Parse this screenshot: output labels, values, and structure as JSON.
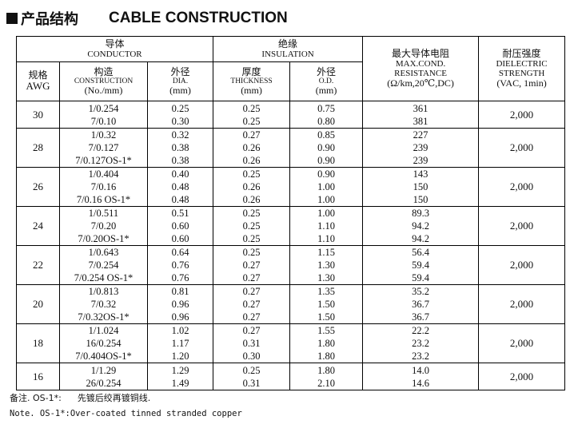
{
  "heading": {
    "cn": "产品结构",
    "en": "CABLE CONSTRUCTION"
  },
  "headers": {
    "conductor_cn": "导体",
    "conductor_en": "CONDUCTOR",
    "insulation_cn": "绝缘",
    "insulation_en": "INSULATION",
    "max_res_cn": "最大导体电阻",
    "max_res_en1": "MAX.COND.",
    "max_res_en2": "RESISTANCE",
    "max_res_unit": "(Ω/km,20℃,DC)",
    "dielectric_cn": "耐压强度",
    "dielectric_en1": "DIELECTRIC",
    "dielectric_en2": "STRENGTH",
    "dielectric_unit": "(VAC, 1min)",
    "awg_cn": "规格",
    "awg_en": "AWG",
    "construction_cn": "构造",
    "construction_en": "CONSTRUCTION",
    "construction_unit": "(No./mm)",
    "dia_cn": "外径",
    "dia_en": "DIA.",
    "dia_unit": "(mm)",
    "thickness_cn": "厚度",
    "thickness_en": "THICKNESS",
    "thickness_unit": "(mm)",
    "od_cn": "外径",
    "od_en": "O.D.",
    "od_unit": "(mm)"
  },
  "rows": [
    {
      "awg": "30",
      "construction": [
        "1/0.254",
        "7/0.10"
      ],
      "dia": [
        "0.25",
        "0.30"
      ],
      "thickness": [
        "0.25",
        "0.25"
      ],
      "od": [
        "0.75",
        "0.80"
      ],
      "resistance": [
        "361",
        "381"
      ],
      "voltage": "2,000"
    },
    {
      "awg": "28",
      "construction": [
        "1/0.32",
        "7/0.127",
        "7/0.127OS-1*"
      ],
      "dia": [
        "0.32",
        "0.38",
        "0.38"
      ],
      "thickness": [
        "0.27",
        "0.26",
        "0.26"
      ],
      "od": [
        "0.85",
        "0.90",
        "0.90"
      ],
      "resistance": [
        "227",
        "239",
        "239"
      ],
      "voltage": "2,000"
    },
    {
      "awg": "26",
      "construction": [
        "1/0.404",
        "7/0.16",
        "7/0.16 OS-1*"
      ],
      "dia": [
        "0.40",
        "0.48",
        "0.48"
      ],
      "thickness": [
        "0.25",
        "0.26",
        "0.26"
      ],
      "od": [
        "0.90",
        "1.00",
        "1.00"
      ],
      "resistance": [
        "143",
        "150",
        "150"
      ],
      "voltage": "2,000"
    },
    {
      "awg": "24",
      "construction": [
        "1/0.511",
        "7/0.20",
        "7/0.20OS-1*"
      ],
      "dia": [
        "0.51",
        "0.60",
        "0.60"
      ],
      "thickness": [
        "0.25",
        "0.25",
        "0.25"
      ],
      "od": [
        "1.00",
        "1.10",
        "1.10"
      ],
      "resistance": [
        "89.3",
        "94.2",
        "94.2"
      ],
      "voltage": "2,000"
    },
    {
      "awg": "22",
      "construction": [
        "1/0.643",
        "7/0.254",
        "7/0.254 OS-1*"
      ],
      "dia": [
        "0.64",
        "0.76",
        "0.76"
      ],
      "thickness": [
        "0.25",
        "0.27",
        "0.27"
      ],
      "od": [
        "1.15",
        "1.30",
        "1.30"
      ],
      "resistance": [
        "56.4",
        "59.4",
        "59.4"
      ],
      "voltage": "2,000"
    },
    {
      "awg": "20",
      "construction": [
        "1/0.813",
        "7/0.32",
        "7/0.32OS-1*"
      ],
      "dia": [
        "0.81",
        "0.96",
        "0.96"
      ],
      "thickness": [
        "0.27",
        "0.27",
        "0.27"
      ],
      "od": [
        "1.35",
        "1.50",
        "1.50"
      ],
      "resistance": [
        "35.2",
        "36.7",
        "36.7"
      ],
      "voltage": "2,000"
    },
    {
      "awg": "18",
      "construction": [
        "1/1.024",
        "16/0.254",
        "7/0.404OS-1*"
      ],
      "dia": [
        "1.02",
        "1.17",
        "1.20"
      ],
      "thickness": [
        "0.27",
        "0.31",
        "0.30"
      ],
      "od": [
        "1.55",
        "1.80",
        "1.80"
      ],
      "resistance": [
        "22.2",
        "23.2",
        "23.2"
      ],
      "voltage": "2,000"
    },
    {
      "awg": "16",
      "construction": [
        "1/1.29",
        "26/0.254"
      ],
      "dia": [
        "1.29",
        "1.49"
      ],
      "thickness": [
        "0.25",
        "0.31"
      ],
      "od": [
        "1.80",
        "2.10"
      ],
      "resistance": [
        "14.0",
        "14.6"
      ],
      "voltage": "2,000"
    }
  ],
  "notes": {
    "cn_label": "备注. OS-1*:",
    "cn_text": "先镀后绞再镀铜线.",
    "en": "Note. OS-1*:Over-coated tinned stranded copper"
  }
}
